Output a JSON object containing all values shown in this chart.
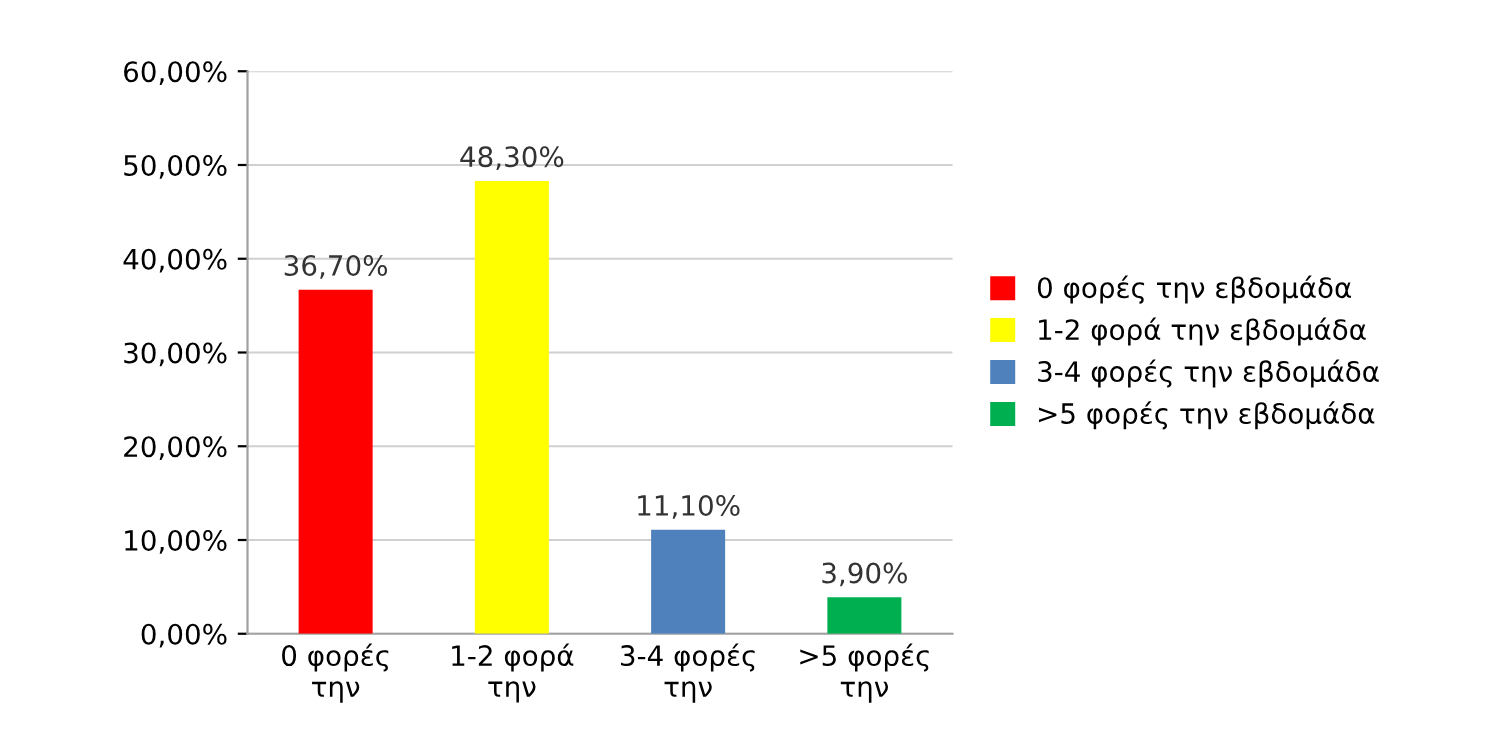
{
  "chart_data": {
    "type": "bar",
    "categories": [
      "0 φορές\nτην",
      "1-2 φορά\nτην",
      "3-4 φορές\nτην",
      ">5 φορές\nτην"
    ],
    "series": [
      {
        "name": "0 φορές την εβδομάδα",
        "color": "#ff0000",
        "values": [
          36.7,
          null,
          null,
          null
        ],
        "value_labels": [
          "36,70%",
          null,
          null,
          null
        ]
      },
      {
        "name": "1-2 φορά την εβδομάδα",
        "color": "#ffff00",
        "values": [
          null,
          48.3,
          null,
          null
        ],
        "value_labels": [
          null,
          "48,30%",
          null,
          null
        ]
      },
      {
        "name": "3-4 φορές την εβδομάδα",
        "color": "#4f81bd",
        "values": [
          null,
          null,
          11.1,
          null
        ],
        "value_labels": [
          null,
          null,
          "11,10%",
          null
        ]
      },
      {
        "name": ">5 φορές την εβδομάδα",
        "color": "#00b050",
        "values": [
          null,
          null,
          null,
          3.9
        ],
        "value_labels": [
          null,
          null,
          null,
          "3,90%"
        ]
      }
    ],
    "ylim": [
      0,
      60
    ],
    "yticks": [
      {
        "value": 0,
        "label": "0,00%"
      },
      {
        "value": 10,
        "label": "10,00%"
      },
      {
        "value": 20,
        "label": "20,00%"
      },
      {
        "value": 30,
        "label": "30,00%"
      },
      {
        "value": 40,
        "label": "40,00%"
      },
      {
        "value": 50,
        "label": "50,00%"
      },
      {
        "value": 60,
        "label": "60,00%"
      }
    ],
    "grid": "y",
    "legend": "right"
  }
}
